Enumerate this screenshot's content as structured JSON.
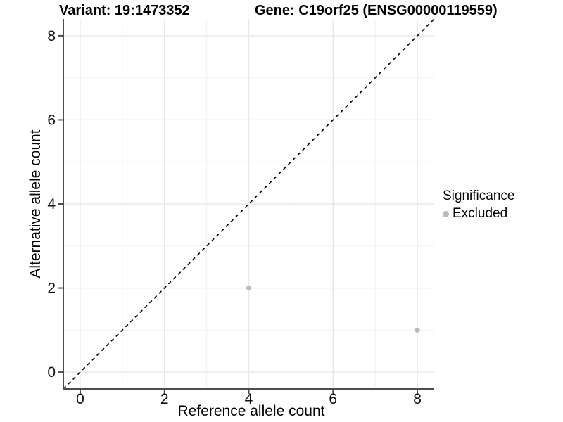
{
  "header": {
    "variant_title": "Variant: 19:1473352",
    "gene_title": "Gene: C19orf25 (ENSG00000119559)"
  },
  "axes": {
    "x_label": "Reference allele count",
    "y_label": "Alternative allele count"
  },
  "legend": {
    "title": "Significance",
    "items": [
      {
        "label": "Excluded",
        "color": "#bcbcbc"
      }
    ]
  },
  "chart_data": {
    "type": "scatter",
    "title": "Variant: 19:1473352 — Gene: C19orf25 (ENSG00000119559)",
    "xlabel": "Reference allele count",
    "ylabel": "Alternative allele count",
    "xlim": [
      -0.4,
      8.4
    ],
    "ylim": [
      -0.4,
      8.4
    ],
    "x_ticks": [
      0,
      2,
      4,
      6,
      8
    ],
    "y_ticks": [
      0,
      2,
      4,
      6,
      8
    ],
    "x_minor_ticks": [
      1,
      3,
      5,
      7
    ],
    "y_minor_ticks": [
      1,
      3,
      5,
      7
    ],
    "grid": true,
    "legend_position": "right",
    "series": [
      {
        "name": "Excluded",
        "points": [
          {
            "x": 4,
            "y": 2
          },
          {
            "x": 8,
            "y": 1
          }
        ],
        "color": "#bcbcbc"
      }
    ],
    "identity_line": {
      "type": "dashed",
      "equation": "y = x",
      "color": "#000000"
    },
    "point_color": "#bcbcbc",
    "axis_line_color": "#4d4d4d",
    "major_grid_color": "#e8e8e8",
    "minor_grid_color": "#f2f2f2",
    "tick_label_color": "#111111"
  }
}
